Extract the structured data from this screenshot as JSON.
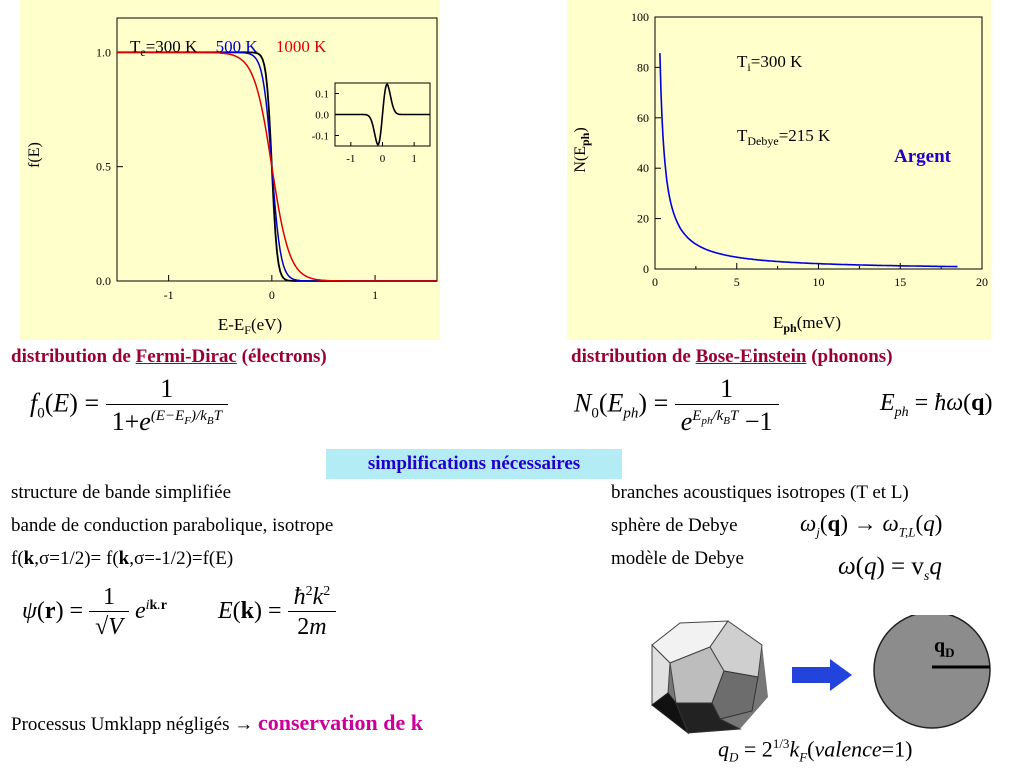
{
  "fermi_panel": {
    "legend": {
      "te_prefix": "T",
      "te_sub": "e",
      "te_eq": "=300 K",
      "t500": "500 K",
      "t1000": "1000 K"
    },
    "ylabel": "f(E)",
    "xlabel_main": "E-E",
    "xlabel_sub": "F",
    "xlabel_tail": "(eV)",
    "xticks": [
      "-1",
      "0",
      "1"
    ],
    "yticks": [
      "0.0",
      "0.5",
      "1.0"
    ],
    "inset": {
      "yticks": [
        "0.1",
        "0.0",
        "-0.1"
      ],
      "xticks": [
        "-1",
        "0",
        "1"
      ]
    }
  },
  "bose_panel": {
    "ylabel": "N(E",
    "ylabel_sub": "ph",
    "ylabel_tail": ")",
    "xlabel_main": "E",
    "xlabel_sub": "ph",
    "xlabel_tail": "(meV)",
    "xticks": [
      "0",
      "5",
      "10",
      "15",
      "20"
    ],
    "yticks": [
      "0",
      "20",
      "40",
      "60",
      "80",
      "100"
    ],
    "ti_main": "T",
    "ti_sub": "i",
    "ti_tail": "=300 K",
    "td_main": "T",
    "td_sub": "Debye",
    "td_tail": "=215 K",
    "argent": "Argent"
  },
  "captions": {
    "left_pre": "distribution de ",
    "left_link": "Fermi-Dirac",
    "left_post": " (électrons)",
    "right_pre": "distribution de ",
    "right_link": "Bose-Einstein",
    "right_post": " (phonons)"
  },
  "simplifications": "simplifications nécessaires",
  "left_list": [
    "structure de bande simplifiée",
    "bande de conduction parabolique, isotrope"
  ],
  "spin_line": {
    "a": "f(",
    "k": "k",
    "b": ",σ=1/2)= f(",
    "c": ",σ=-1/2)=f(E)"
  },
  "right_list": [
    "branches acoustiques isotropes (T et L)",
    "sphère de Debye",
    "modèle de Debye"
  ],
  "umklapp": {
    "text": "Processus Umklapp négligés → ",
    "highlight": "conservation de k"
  },
  "qd_label": "q",
  "qd_sub": "D",
  "chart_data": [
    {
      "type": "line",
      "title": "",
      "xlabel": "E-EF(eV)",
      "ylabel": "f(E)",
      "xlim": [
        -1.5,
        1.6
      ],
      "ylim": [
        0,
        1.15
      ],
      "series": [
        {
          "name": "Te=300 K",
          "color": "#000000",
          "kT": 0.0259,
          "x": [
            -1.5,
            -0.2,
            -0.1,
            -0.05,
            0,
            0.05,
            0.1,
            0.2,
            1.6
          ],
          "y": [
            1.0,
            1.0,
            0.98,
            0.87,
            0.5,
            0.13,
            0.02,
            0.0,
            0.0
          ]
        },
        {
          "name": "500 K",
          "color": "#0000cc",
          "kT": 0.0431,
          "x": [
            -1.5,
            -0.3,
            -0.15,
            -0.05,
            0,
            0.05,
            0.15,
            0.3,
            1.6
          ],
          "y": [
            1.0,
            1.0,
            0.97,
            0.76,
            0.5,
            0.24,
            0.03,
            0.0,
            0.0
          ]
        },
        {
          "name": "1000 K",
          "color": "#dd0000",
          "kT": 0.0862,
          "x": [
            -1.5,
            -0.5,
            -0.3,
            -0.1,
            0,
            0.1,
            0.3,
            0.5,
            1.6
          ],
          "y": [
            1.0,
            1.0,
            0.97,
            0.76,
            0.5,
            0.24,
            0.03,
            0.0,
            0.0
          ]
        }
      ],
      "inset": {
        "xlim": [
          -1.5,
          1.5
        ],
        "ylim": [
          -0.15,
          0.15
        ],
        "x": [
          -1.5,
          -0.3,
          -0.1,
          0,
          0.1,
          0.3,
          1.5
        ],
        "y": [
          0,
          0,
          -0.12,
          0,
          0.12,
          0,
          0
        ]
      }
    },
    {
      "type": "line",
      "title": "",
      "xlabel": "Eph(meV)",
      "ylabel": "N(Eph)",
      "xlim": [
        0,
        20
      ],
      "ylim": [
        0,
        100
      ],
      "series": [
        {
          "name": "",
          "color": "#0000dd",
          "x": [
            0.3,
            0.5,
            1,
            2,
            3,
            5,
            8,
            10,
            15,
            18.5
          ],
          "y": [
            85.7,
            51.2,
            25.4,
            12.4,
            8.1,
            4.7,
            2.7,
            2.1,
            1.2,
            0.9
          ]
        }
      ]
    }
  ]
}
